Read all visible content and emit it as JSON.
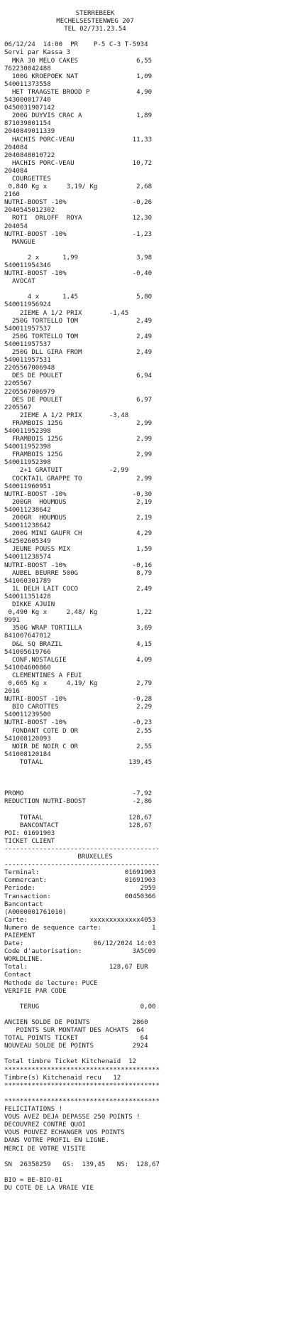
{
  "receipt": {
    "header": [
      "STERREBEEK",
      "MECHELSESTEENWEG 207",
      "TEL 02/731.23.54"
    ],
    "lines": [
      "",
      "06/12/24  14:00  PR    P-5 C-3 T-5934",
      "Servi par Kassa 3",
      "  MKA 30 MELO CAKES               6,55",
      "762230042488",
      "  100G KROEPOEK NAT               1,09",
      "540011373558",
      "  HET TRAAGSTE BROOD P            4,90",
      "543000017740",
      "0450031907142",
      "  200G DUYVIS CRAC A              1,89",
      "871039801154",
      "2040849011339",
      "  HACHIS PORC-VEAU               11,33",
      "204084",
      "2040848010722",
      "  HACHIS PORC-VEAU               10,72",
      "204084",
      "  COURGETTES",
      " 0,840 Kg x     3,19/ Kg          2,68",
      "2160",
      "NUTRI-BOOST -10%                 -0,26",
      "2040545012302",
      "  ROTI  ORLOFF  ROYA             12,30",
      "204054",
      "NUTRI-BOOST -10%                 -1,23",
      "  MANGUE",
      "",
      "      2 x      1,99               3,98",
      "540011954346",
      "NUTRI-BOOST -10%                 -0,40",
      "  AVOCAT",
      "",
      "      4 x      1,45               5,80",
      "540011956924",
      "    2IEME A 1/2 PRIX       -1,45",
      "  250G TORTELLO TOM               2,49",
      "540011957537",
      "  250G TORTELLO TOM               2,49",
      "540011957537",
      "  250G DLL GIRA FROM              2,49",
      "540011957531",
      "2205567006948",
      "  DES DE POULET                   6,94",
      "2205567",
      "2205567006979",
      "  DES DE POULET                   6,97",
      "2205567",
      "    2IEME A 1/2 PRIX       -3,48",
      "  FRAMBOIS 125G                   2,99",
      "540011952398",
      "  FRAMBOIS 125G                   2,99",
      "540011952398",
      "  FRAMBOIS 125G                   2,99",
      "540011952398",
      "    2+1 GRATUIT            -2,99",
      "  COCKTAIL GRAPPE TO              2,99",
      "540011960951",
      "NUTRI-BOOST -10%                 -0,30",
      "  200GR  HOUMOUS                  2,19",
      "540011238642",
      "  200GR  HOUMOUS                  2,19",
      "540011238642",
      "  200G MINI GAUFR CH              4,29",
      "542502605349",
      "  JEUNE POUSS MIX                 1,59",
      "540011238574",
      "NUTRI-BOOST -10%                 -0,16",
      "  AUBEL BEURRE 500G               8,79",
      "541060301789",
      "  1L DELH LAIT COCO               2,49",
      "540011351428",
      "  DIKKE AJUIN",
      " 0,490 Kg x     2,48/ Kg          1,22",
      "9991",
      "  350G WRAP TORTILLA              3,69",
      "841007647012",
      "  D&L SQ BRAZIL                   4,15",
      "541005619766",
      "  CONF.NOSTALGIE                  4,09",
      "541004600860",
      "  CLEMENTINES A FEUI",
      " 0,665 Kg x     4,19/ Kg          2,79",
      "2016",
      "NUTRI-BOOST -10%                 -0,28",
      "  BIO CAROTTES                    2,29",
      "540011239500",
      "NUTRI-BOOST -10%                 -0,23",
      "  FONDANT COTE D OR               2,55",
      "541008120093",
      "  NOIR DE NOIR C OR               2,55",
      "541008120184",
      "    TOTAAL                      139,45",
      "",
      "",
      "",
      "PROMO                            -7,92",
      "REDUCTION NUTRI-BOOST            -2,86",
      "",
      "    TOTAAL                      128,67",
      "    BANCONTACT                  128,67",
      "POI: 01691903",
      "TICKET CLIENT",
      "----------------------------------------"
    ],
    "bank_title": "BRUXELLES",
    "bank_lines": [
      "----------------------------------------",
      "Terminal:                      01691903",
      "Commercant:                    01691903",
      "Periode:                           2959",
      "Transaction:                   00450366",
      "Bancontact",
      "(A0000001761010)",
      "Carte:                xxxxxxxxxxxxx4053",
      "Numero de sequence carte:             1",
      "PAIEMENT",
      "Date:                  06/12/2024 14:03",
      "Code d'autorisation:             3A5C09",
      "WORLDLINE.",
      "Total:                     128,67 EUR",
      "Contact",
      "Methode de lecture: PUCE",
      "VERIFIE PAR CODE",
      "",
      "    TERUG                          0,00",
      "",
      "ANCIEN SOLDE DE POINTS           2860",
      "   POINTS SUR MONTANT DES ACHATS  64",
      "TOTAL POINTS TICKET                64",
      "NOUVEAU SOLDE DE POINTS          2924",
      "",
      "Total timbre Ticket Kitchenaid  12",
      "****************************************",
      "Timbre(s) Kitchenaid recu   12",
      "****************************************",
      "",
      "****************************************",
      "FELICITATIONS !",
      "VOUS AVEZ DEJA DEPASSE 250 POINTS !",
      "DECOUVREZ CONTRE QUOI",
      "VOUS POUVEZ ECHANGER VOS POINTS",
      "DANS VOTRE PROFIL EN LIGNE.",
      "MERCI DE VOTRE VISITE",
      "",
      "SN  26358259   GS:  139,45   NS:  128,67",
      "",
      "BIO = BE-BIO-01",
      "DU COTE DE LA VRAIE VIE"
    ]
  }
}
